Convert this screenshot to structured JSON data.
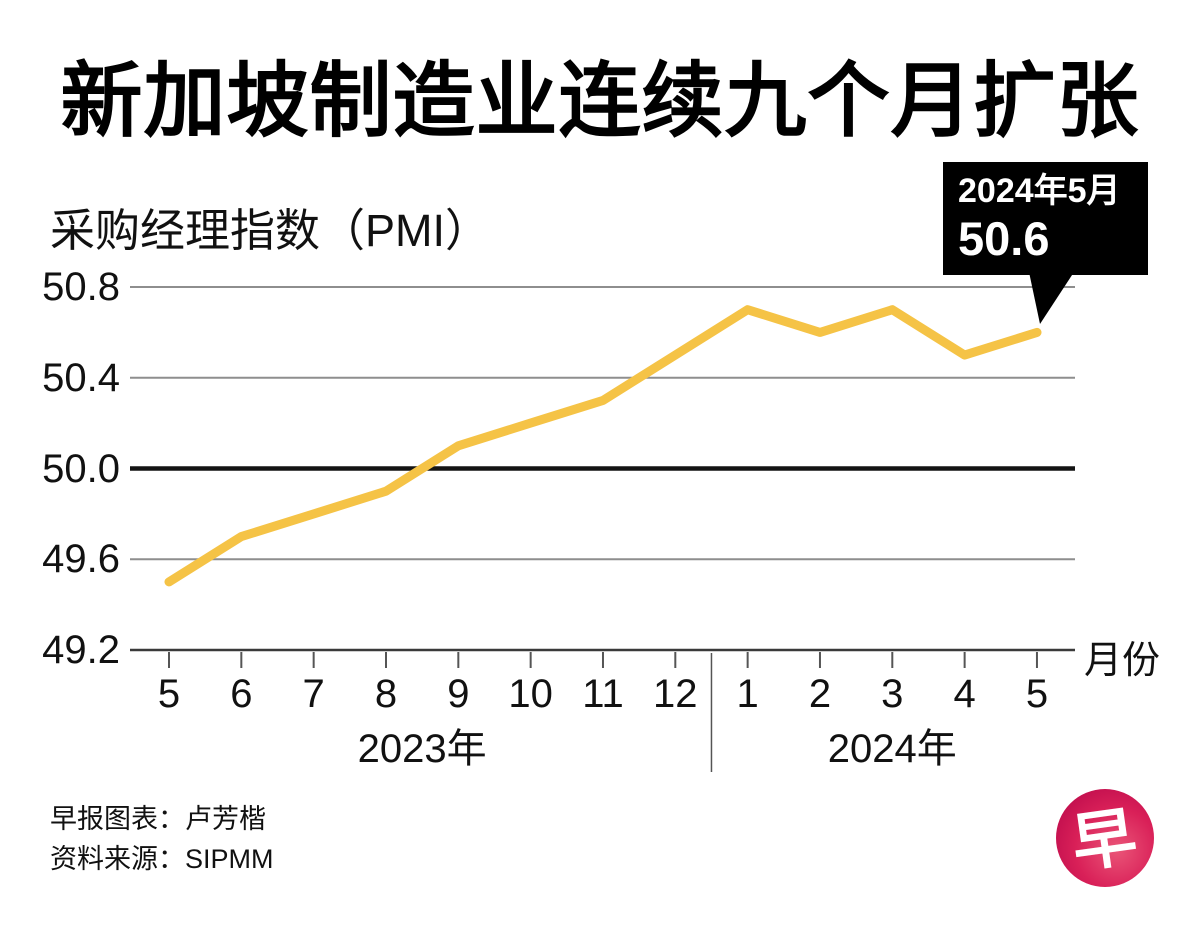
{
  "title": "新加坡制造业连续九个月扩张",
  "subtitle": "采购经理指数（PMI）",
  "callout": {
    "line1": "2024年5月",
    "value": "50.6"
  },
  "footer": {
    "credit": "早报图表：卢芳楷",
    "source": "资料来源：SIPMM"
  },
  "logo": {
    "char": "早"
  },
  "chart_data": {
    "type": "line",
    "title": "新加坡制造业连续九个月扩张",
    "ylabel": "采购经理指数（PMI）",
    "xlabel": "月份",
    "x_labels": [
      "5",
      "6",
      "7",
      "8",
      "9",
      "10",
      "11",
      "12",
      "1",
      "2",
      "3",
      "4",
      "5"
    ],
    "year_groups": [
      {
        "label": "2023年",
        "months": 8
      },
      {
        "label": "2024年",
        "months": 5
      }
    ],
    "series": [
      {
        "name": "PMI",
        "values": [
          49.5,
          49.7,
          49.8,
          49.9,
          50.1,
          50.2,
          50.3,
          50.5,
          50.7,
          50.6,
          50.7,
          50.5,
          50.6
        ]
      }
    ],
    "y_ticks": [
      50.8,
      50.4,
      50.0,
      49.6,
      49.2
    ],
    "ylim": [
      49.2,
      50.8
    ],
    "baseline": 50.0,
    "grid": true,
    "legend": "none",
    "annotation": {
      "x_label": "2024年5月",
      "value": 50.6
    },
    "line_color": "#F5C346",
    "grid_color": "#8e8e8e",
    "baseline_color": "#141414",
    "axis_color": "#3a3a3a",
    "callout_bg": "#000000"
  }
}
